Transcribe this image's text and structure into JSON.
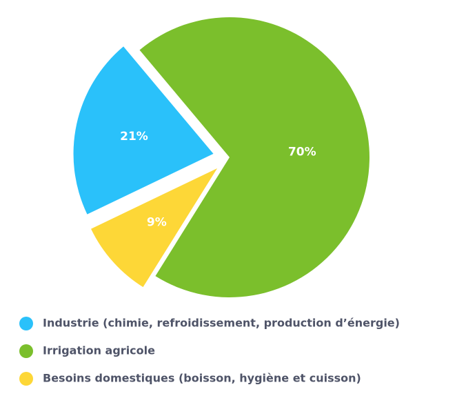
{
  "chart_data": {
    "type": "pie",
    "categories": [
      "Industrie (chimie, refroidissement, production d’énergie)",
      "Irrigation agricole",
      "Besoins domestiques (boisson, hygiène et cuisson)"
    ],
    "values": [
      21,
      70,
      9
    ],
    "value_labels": [
      "21%",
      "70%",
      "9%"
    ],
    "colors": [
      "#2ac1fa",
      "#7bbf2c",
      "#fdd737"
    ],
    "legend": "bottom"
  }
}
